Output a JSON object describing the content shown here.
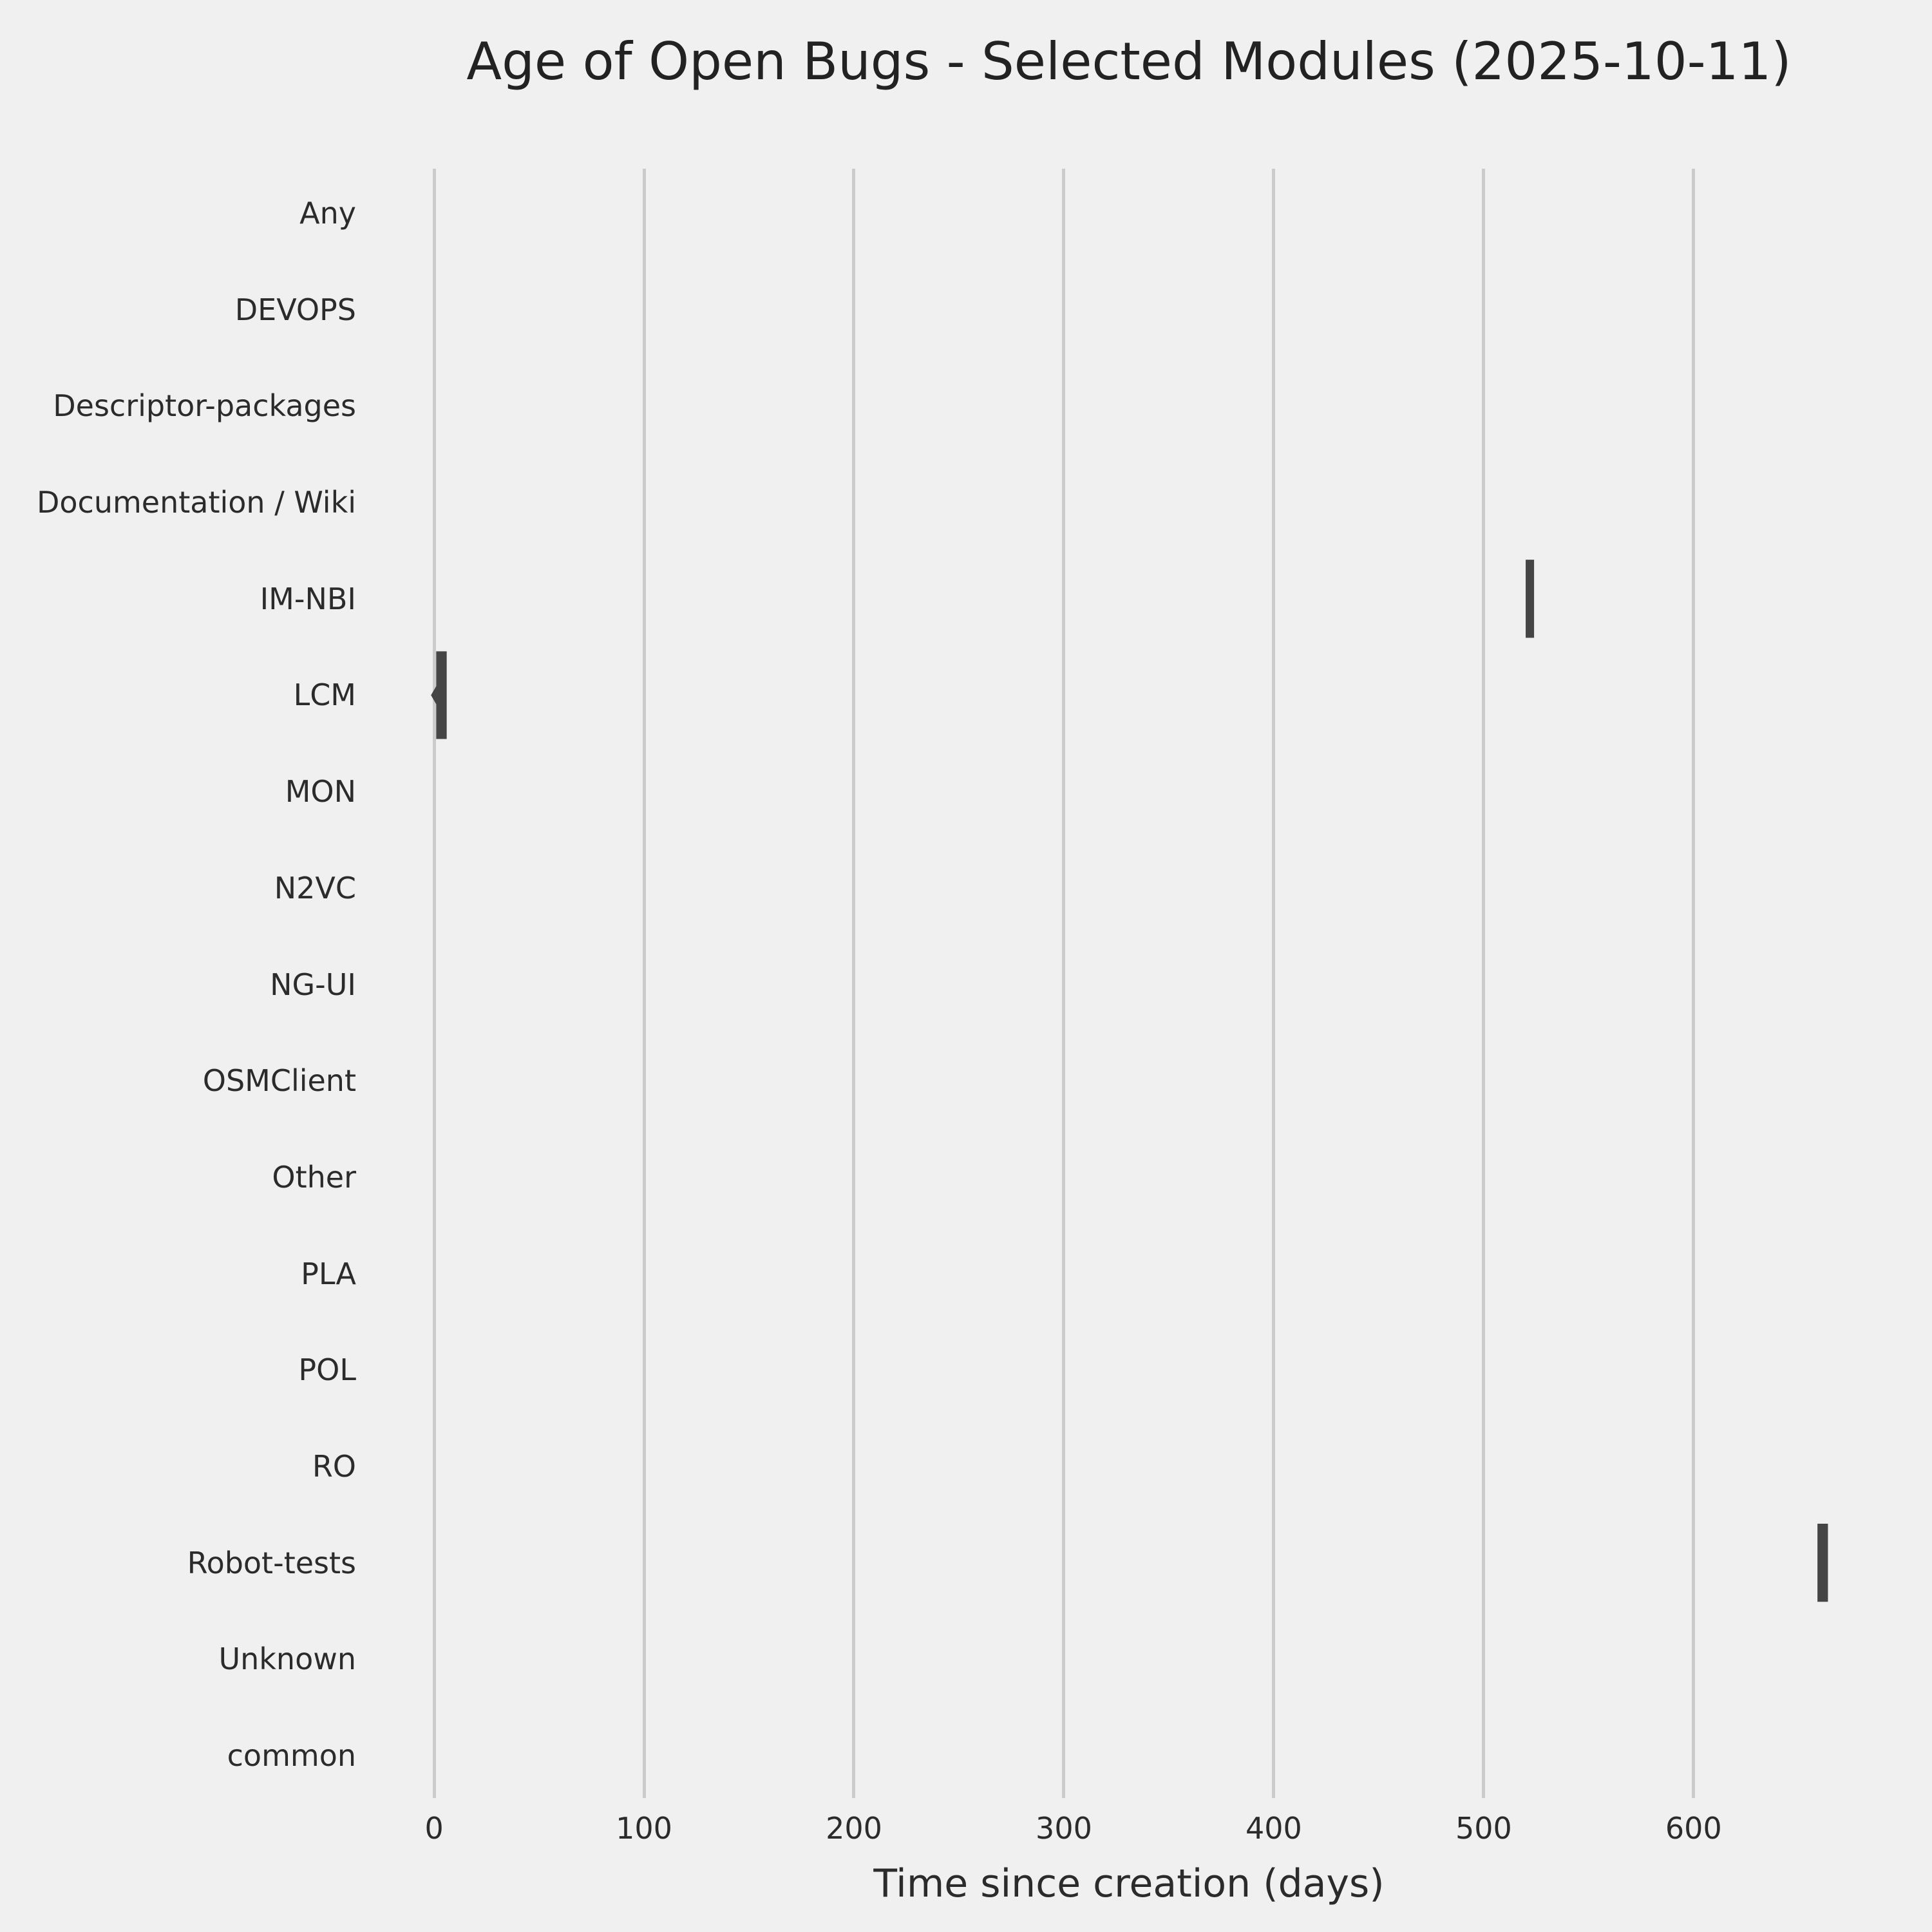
{
  "chart_data": {
    "type": "violin",
    "orientation": "horizontal",
    "title": "Age of Open Bugs - Selected Modules (2025-10-11)",
    "xlabel": "Time since creation (days)",
    "ylabel": "",
    "categories": [
      "Any",
      "DEVOPS",
      "Descriptor-packages",
      "Documentation / Wiki",
      "IM-NBI",
      "LCM",
      "MON",
      "N2VC",
      "NG-UI",
      "OSMClient",
      "Other",
      "PLA",
      "POL",
      "RO",
      "Robot-tests",
      "Unknown",
      "common"
    ],
    "xticks": [
      0,
      100,
      200,
      300,
      400,
      500,
      600
    ],
    "xlim": [
      -35,
      697
    ],
    "grid": true,
    "legend": false,
    "series": [
      {
        "category": "IM-NBI",
        "range_days": [
          520,
          524
        ],
        "approx_age_days": 522,
        "shape": "block",
        "body_height_frac": 0.81
      },
      {
        "category": "LCM",
        "range_days": [
          1,
          6
        ],
        "tail_days": -1.5,
        "approx_age_days": 3,
        "shape": "block-with-left-tip",
        "body_height_frac": 0.91
      },
      {
        "category": "Robot-tests",
        "range_days": [
          659,
          664
        ],
        "approx_age_days": 661,
        "shape": "block",
        "body_height_frac": 0.81
      }
    ],
    "colors": {
      "background": "#f0f0f0",
      "grid": "#cbcbcb",
      "violin": "#454545",
      "text": "#2b2b2b",
      "title_text": "#222222"
    }
  }
}
